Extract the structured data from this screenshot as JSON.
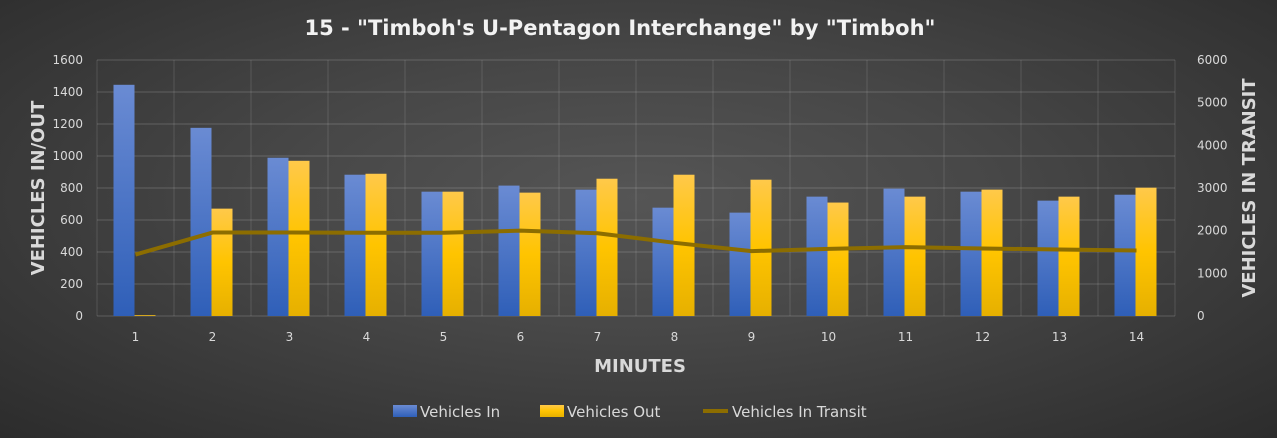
{
  "chart_data": {
    "type": "bar",
    "title": "15 - \"Timboh's U-Pentagon Interchange\" by \"Timboh\"",
    "xlabel": "MINUTES",
    "ylabel": "VEHICLES IN/OUT",
    "y2label": "VEHICLES IN TRANSIT",
    "categories": [
      "1",
      "2",
      "3",
      "4",
      "5",
      "6",
      "7",
      "8",
      "9",
      "10",
      "11",
      "12",
      "13",
      "14"
    ],
    "ylim": [
      0,
      1600
    ],
    "yticks": [
      "0",
      "200",
      "400",
      "600",
      "800",
      "1000",
      "1200",
      "1400",
      "1600"
    ],
    "y2lim": [
      0,
      6000
    ],
    "y2ticks": [
      "0",
      "1000",
      "2000",
      "3000",
      "4000",
      "5000",
      "6000"
    ],
    "grid": true,
    "legend_position": "bottom",
    "series": [
      {
        "name": "Vehicles In",
        "type": "bar",
        "axis": "left",
        "color": "#4472c4",
        "values": [
          1445,
          1176,
          989,
          883,
          777,
          815,
          790,
          677,
          646,
          746,
          796,
          777,
          721,
          758
        ]
      },
      {
        "name": "Vehicles Out",
        "type": "bar",
        "axis": "left",
        "color": "#ffc000",
        "values": [
          5,
          671,
          970,
          889,
          777,
          771,
          858,
          883,
          852,
          709,
          746,
          790,
          746,
          802
        ]
      },
      {
        "name": "Vehicles In Transit",
        "type": "line",
        "axis": "right",
        "color": "#8c6d00",
        "values": [
          1440,
          1956,
          1956,
          1950,
          1950,
          2000,
          1940,
          1715,
          1520,
          1574,
          1613,
          1582,
          1559,
          1535
        ]
      }
    ]
  }
}
